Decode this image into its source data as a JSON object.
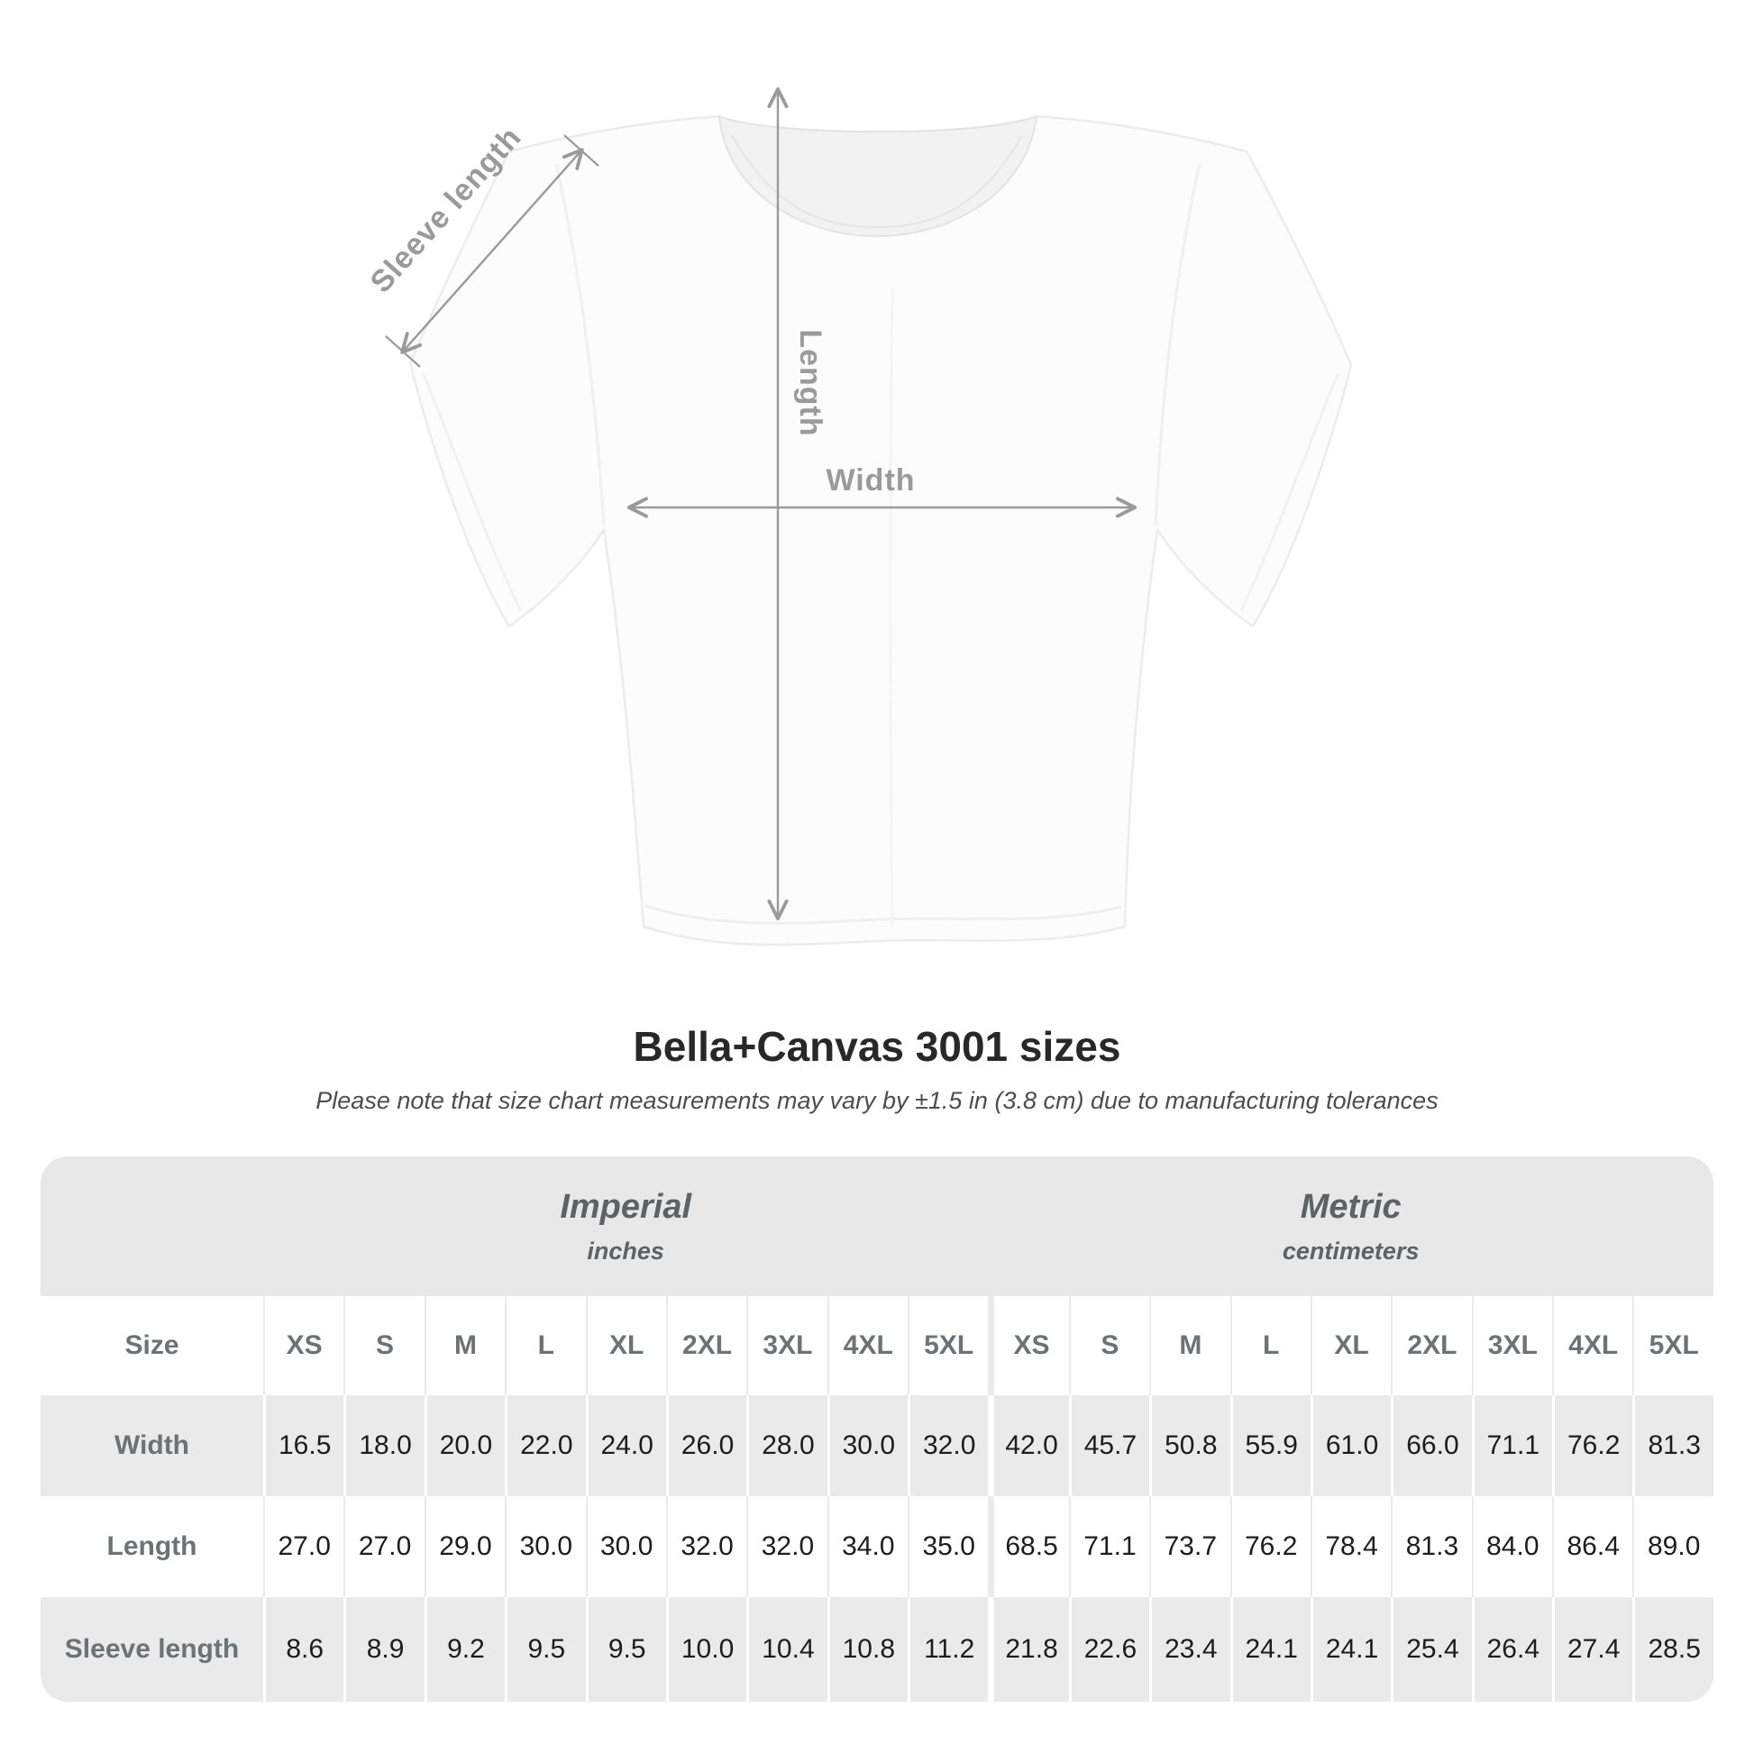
{
  "diagram": {
    "sleeve_length_label": "Sleeve length",
    "length_label": "Length",
    "width_label": "Width"
  },
  "header": {
    "title": "Bella+Canvas 3001 sizes",
    "subtitle": "Please note that size chart measurements may vary by ±1.5 in (3.8 cm) due to manufacturing tolerances"
  },
  "table": {
    "size_col_header": "Size",
    "groups": [
      {
        "name": "Imperial",
        "unit": "inches"
      },
      {
        "name": "Metric",
        "unit": "centimeters"
      }
    ],
    "sizes": [
      "XS",
      "S",
      "M",
      "L",
      "XL",
      "2XL",
      "3XL",
      "4XL",
      "5XL"
    ],
    "rows": [
      {
        "label": "Width",
        "imperial": [
          "16.5",
          "18.0",
          "20.0",
          "22.0",
          "24.0",
          "26.0",
          "28.0",
          "30.0",
          "32.0"
        ],
        "metric": [
          "42.0",
          "45.7",
          "50.8",
          "55.9",
          "61.0",
          "66.0",
          "71.1",
          "76.2",
          "81.3"
        ]
      },
      {
        "label": "Length",
        "imperial": [
          "27.0",
          "27.0",
          "29.0",
          "30.0",
          "30.0",
          "32.0",
          "32.0",
          "34.0",
          "35.0"
        ],
        "metric": [
          "68.5",
          "71.1",
          "73.7",
          "76.2",
          "78.4",
          "81.3",
          "84.0",
          "86.4",
          "89.0"
        ]
      },
      {
        "label": "Sleeve length",
        "imperial": [
          "8.6",
          "8.9",
          "9.2",
          "9.5",
          "9.5",
          "10.0",
          "10.4",
          "10.8",
          "11.2"
        ],
        "metric": [
          "21.8",
          "22.6",
          "23.4",
          "24.1",
          "24.1",
          "25.4",
          "26.4",
          "27.4",
          "28.5"
        ]
      }
    ]
  },
  "colors": {
    "band_gray": "#e9e8e8",
    "stripe_gray": "#ebeaea",
    "value_text": "#1d1d1d",
    "row_label_text": "#6b7376",
    "group_text": "#5c6366",
    "diagram_gray": "#9a9a9a"
  },
  "chart_data": {
    "type": "table",
    "title": "Bella+Canvas 3001 sizes",
    "note": "Please note that size chart measurements may vary by ±1.5 in (3.8 cm) due to manufacturing tolerances",
    "column_groups": [
      "Imperial (inches)",
      "Metric (centimeters)"
    ],
    "sizes": [
      "XS",
      "S",
      "M",
      "L",
      "XL",
      "2XL",
      "3XL",
      "4XL",
      "5XL"
    ],
    "rows": [
      {
        "measurement": "Width",
        "imperial_in": [
          16.5,
          18.0,
          20.0,
          22.0,
          24.0,
          26.0,
          28.0,
          30.0,
          32.0
        ],
        "metric_cm": [
          42.0,
          45.7,
          50.8,
          55.9,
          61.0,
          66.0,
          71.1,
          76.2,
          81.3
        ]
      },
      {
        "measurement": "Length",
        "imperial_in": [
          27.0,
          27.0,
          29.0,
          30.0,
          30.0,
          32.0,
          32.0,
          34.0,
          35.0
        ],
        "metric_cm": [
          68.5,
          71.1,
          73.7,
          76.2,
          78.4,
          81.3,
          84.0,
          86.4,
          89.0
        ]
      },
      {
        "measurement": "Sleeve length",
        "imperial_in": [
          8.6,
          8.9,
          9.2,
          9.5,
          9.5,
          10.0,
          10.4,
          10.8,
          11.2
        ],
        "metric_cm": [
          21.8,
          22.6,
          23.4,
          24.1,
          24.1,
          25.4,
          26.4,
          27.4,
          28.5
        ]
      }
    ]
  }
}
